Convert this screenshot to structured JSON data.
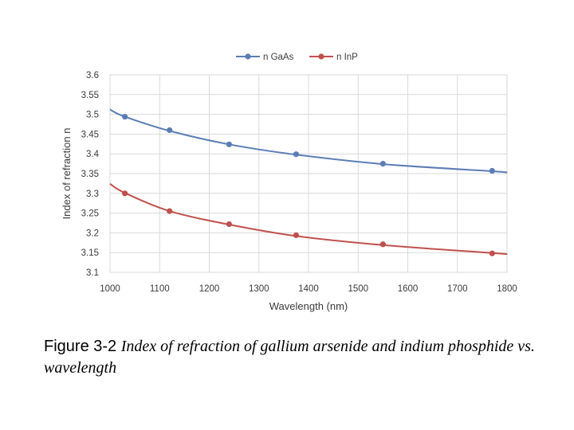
{
  "chart_data": {
    "type": "line",
    "xlabel": "Wavelength (nm)",
    "ylabel": "Index of refraction n",
    "xlim": [
      1000,
      1800
    ],
    "ylim": [
      3.1,
      3.6
    ],
    "x_ticks": [
      "1000",
      "1100",
      "1200",
      "1300",
      "1400",
      "1500",
      "1600",
      "1700",
      "1800"
    ],
    "y_ticks": [
      "3.1",
      "3.15",
      "3.2",
      "3.25",
      "3.3",
      "3.35",
      "3.4",
      "3.45",
      "3.5",
      "3.55",
      "3.6"
    ],
    "grid": true,
    "legend_position": "top-center",
    "series": [
      {
        "name": "n GaAs",
        "color": "#5b7db5",
        "curve": {
          "x": [
            1000,
            1030,
            1120,
            1240,
            1375,
            1550,
            1770,
            1800
          ],
          "y": [
            3.512,
            3.494,
            3.458,
            3.424,
            3.398,
            3.374,
            3.356,
            3.353
          ]
        },
        "markers": {
          "x": [
            1030,
            1120,
            1240,
            1375,
            1550,
            1770
          ],
          "y": [
            3.494,
            3.46,
            3.424,
            3.399,
            3.375,
            3.357
          ]
        }
      },
      {
        "name": "n InP",
        "color": "#c0504d",
        "curve": {
          "x": [
            1000,
            1030,
            1120,
            1240,
            1375,
            1550,
            1770,
            1800
          ],
          "y": [
            3.324,
            3.301,
            3.255,
            3.221,
            3.192,
            3.169,
            3.149,
            3.146
          ]
        },
        "markers": {
          "x": [
            1030,
            1120,
            1240,
            1375,
            1550,
            1770
          ],
          "y": [
            3.3,
            3.255,
            3.222,
            3.194,
            3.171,
            3.148
          ]
        }
      }
    ]
  },
  "caption": {
    "label": "Figure 3-2",
    "text": "Index of refraction of gallium arsenide and indium phosphide vs. wavelength"
  }
}
